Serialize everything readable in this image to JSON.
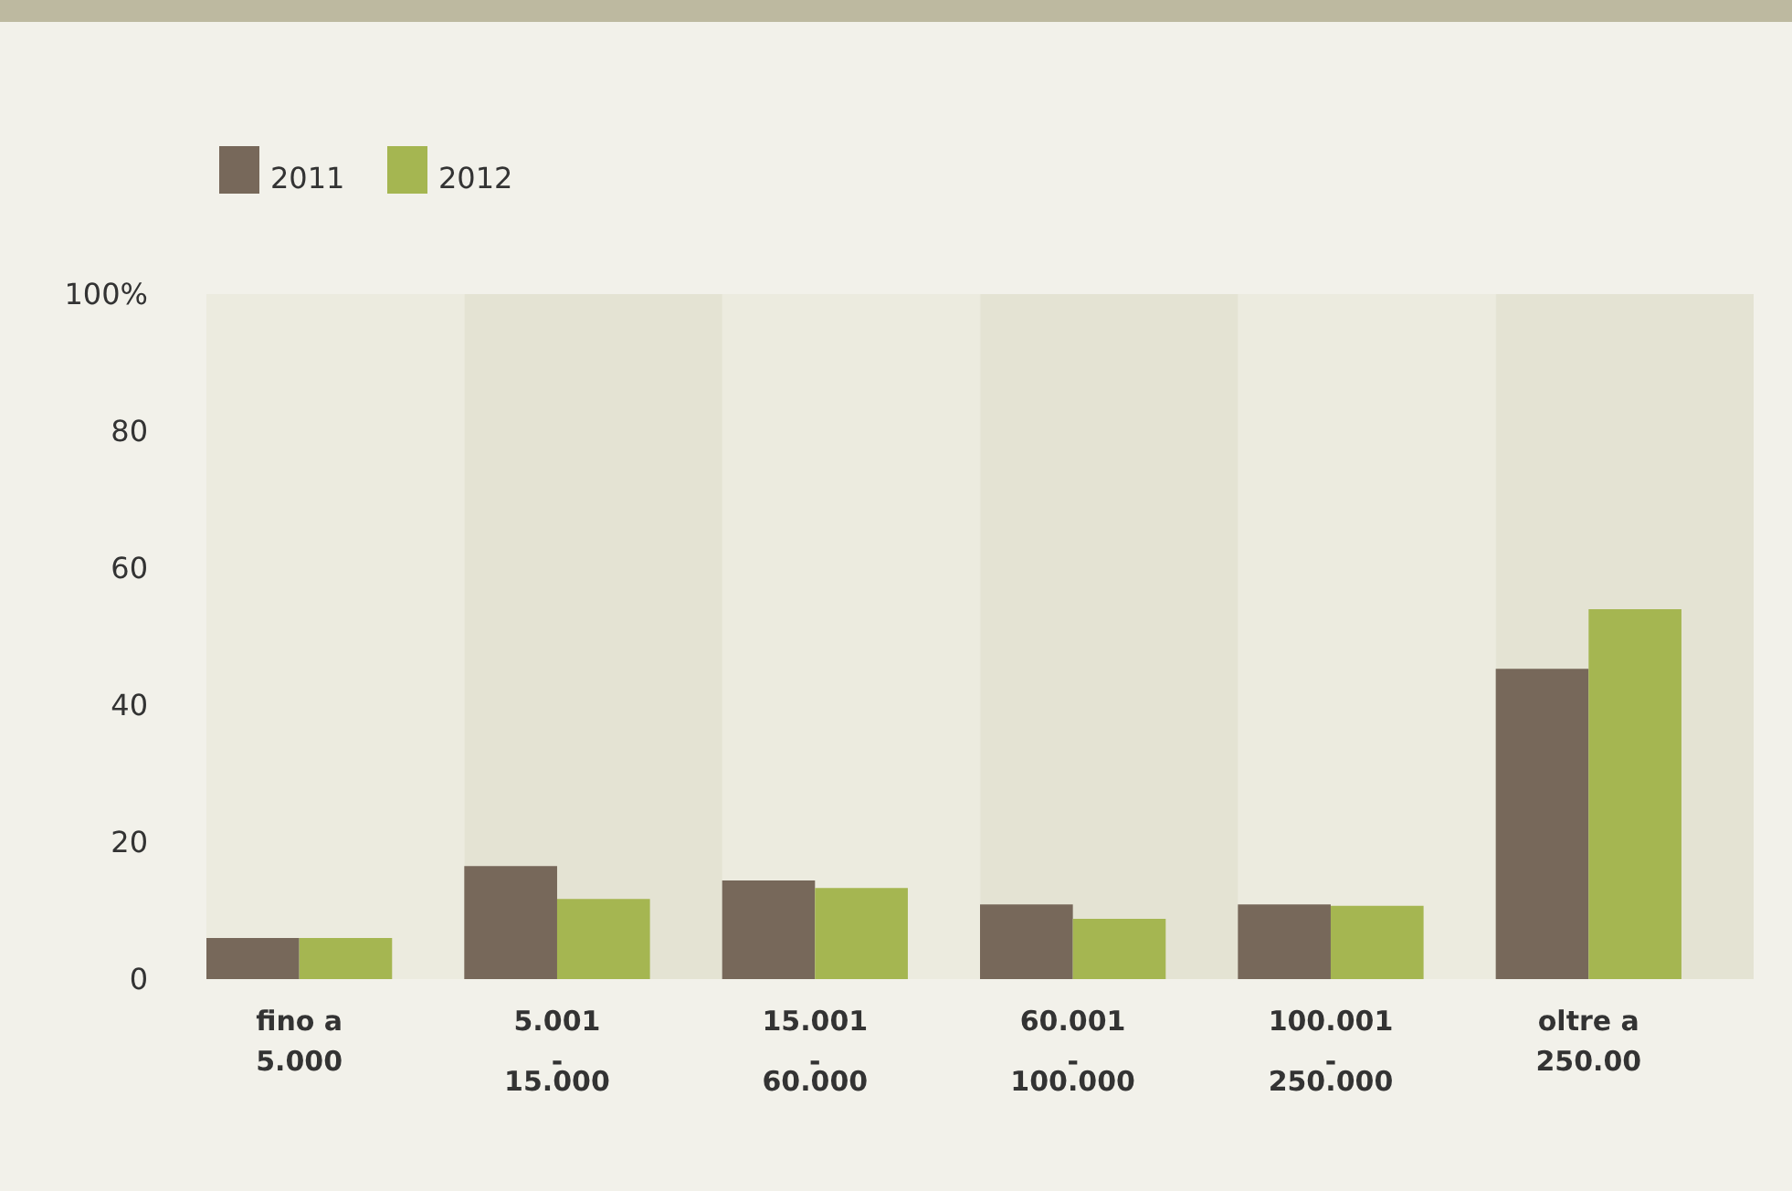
{
  "chart_data": {
    "type": "bar",
    "categories": [
      "fino a\n5.000",
      "5.001\n-\n15.000",
      "15.001\n-\n60.000",
      "60.001\n-\n100.000",
      "100.001\n-\n250.000",
      "oltre a\n250.00"
    ],
    "series": [
      {
        "name": "2011",
        "color": "#77685a",
        "values": [
          6,
          16.5,
          14.4,
          10.9,
          10.9,
          45.3
        ]
      },
      {
        "name": "2012",
        "color": "#a5b651",
        "values": [
          6,
          11.7,
          13.3,
          8.8,
          10.7,
          54
        ]
      }
    ],
    "ylim": [
      0,
      100
    ],
    "yticks": [
      0,
      20,
      40,
      60,
      80,
      {
        "value": 100,
        "label": "100%"
      }
    ],
    "grid": false,
    "legend": "top left"
  }
}
